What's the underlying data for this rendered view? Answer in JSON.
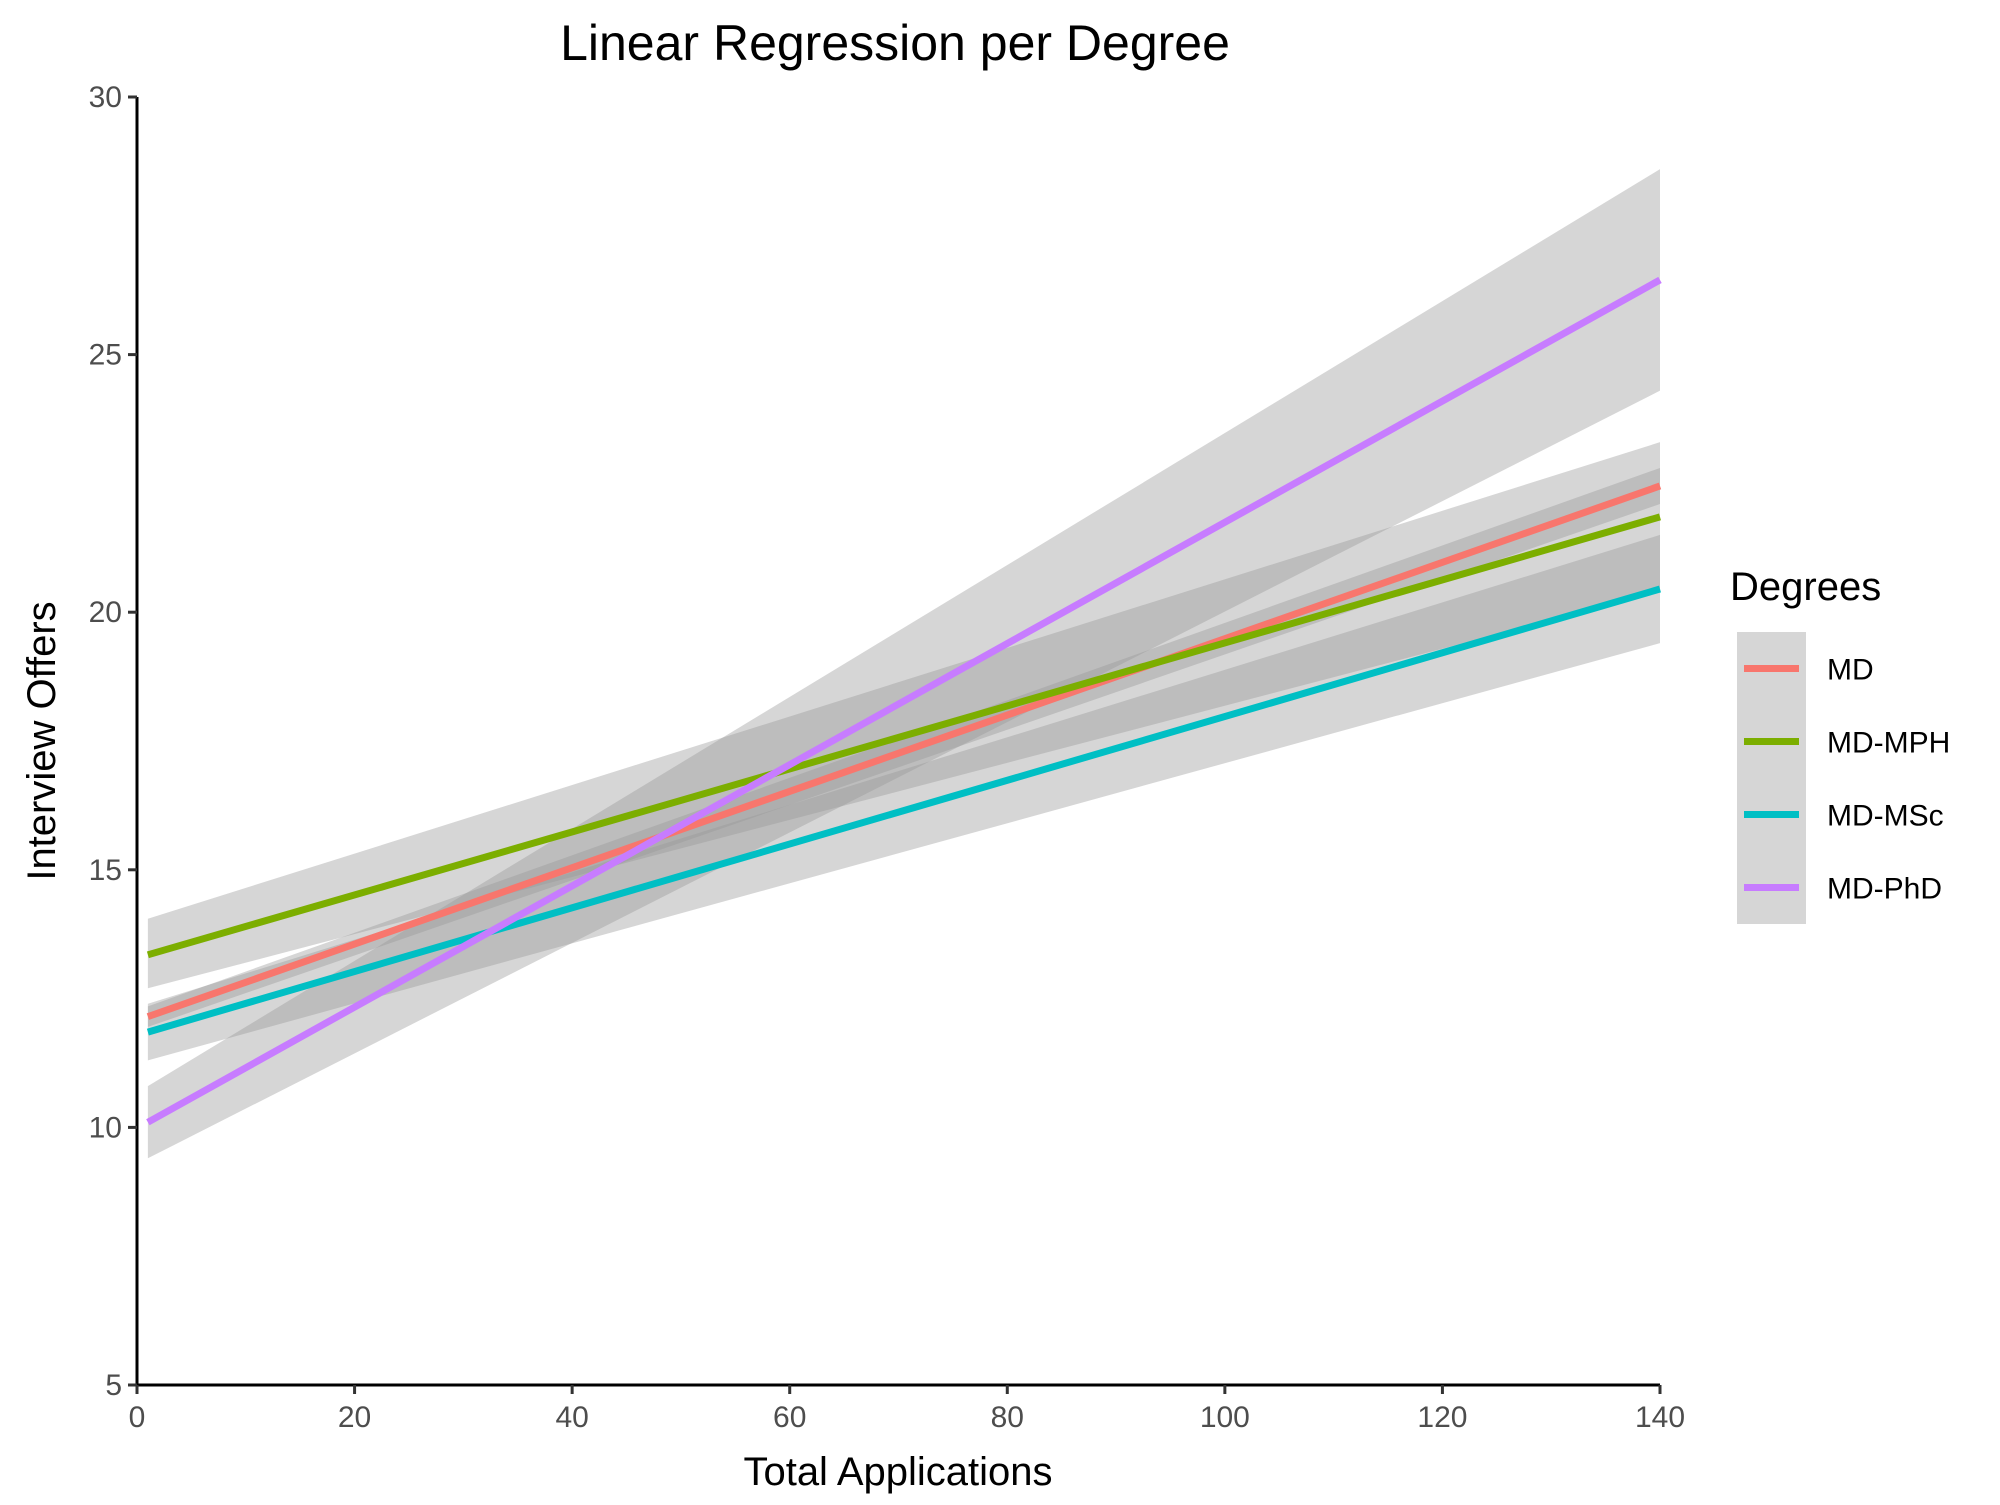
{
  "chart_data": {
    "type": "line",
    "title": "Linear Regression per Degree",
    "xlabel": "Total Applications",
    "ylabel": "Interview Offers",
    "xlim": [
      0,
      140
    ],
    "ylim": [
      5,
      30
    ],
    "x_ticks": [
      0,
      20,
      40,
      60,
      80,
      100,
      120,
      140
    ],
    "y_ticks": [
      5,
      10,
      15,
      20,
      25,
      30
    ],
    "x_tick_labels": [
      "0",
      "20",
      "40",
      "60",
      "80",
      "100",
      "120",
      "140"
    ],
    "y_tick_labels": [
      "5",
      "10",
      "15",
      "20",
      "25",
      "30"
    ],
    "grid": false,
    "legend": {
      "title": "Degrees",
      "position": "right"
    },
    "confidence_band_color": "#999999",
    "series": [
      {
        "name": "MD",
        "color": "#F8766D",
        "x": [
          1,
          140
        ],
        "y": [
          12.15,
          22.45
        ],
        "band_lower": [
          11.95,
          22.1
        ],
        "band_upper": [
          12.35,
          22.8
        ]
      },
      {
        "name": "MD-MPH",
        "color": "#7CAE00",
        "x": [
          1,
          140
        ],
        "y": [
          13.35,
          21.85
        ],
        "band_lower": [
          12.7,
          20.4
        ],
        "band_upper": [
          14.05,
          23.3
        ]
      },
      {
        "name": "MD-MSc",
        "color": "#00BFC4",
        "x": [
          1,
          140
        ],
        "y": [
          11.85,
          20.45
        ],
        "band_lower": [
          11.3,
          19.4
        ],
        "band_upper": [
          12.4,
          21.5
        ]
      },
      {
        "name": "MD-PhD",
        "color": "#C77CFF",
        "x": [
          1,
          140
        ],
        "y": [
          10.1,
          26.45
        ],
        "band_lower": [
          9.4,
          24.3
        ],
        "band_upper": [
          10.8,
          28.6
        ]
      }
    ]
  }
}
